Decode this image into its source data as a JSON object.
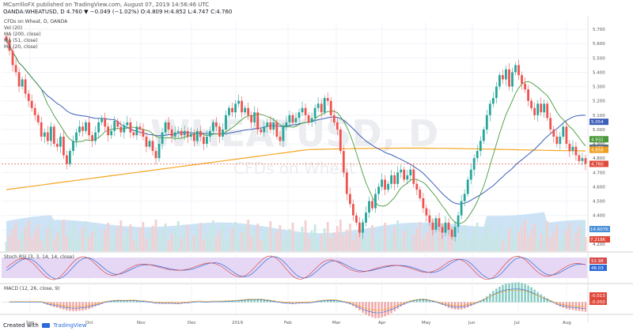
{
  "header": {
    "published_line": "MCarrilloFX published on TradingView.com, August 07, 2019 14:56:46 UTC",
    "symbol_line": "OANDA:WHEATUSD, D  4.760  ▼ −0.049 (−1.02%)  O:4.809  H:4.852  L:4.747  C:4.760"
  },
  "legend": {
    "title": "CFDs on Wheat, D, OANDA",
    "items": [
      "Vol (20)",
      "MA (200, close)",
      "MA (51, close)",
      "MA (20, close)"
    ]
  },
  "watermark": {
    "symbol": "WHEATUSD, D",
    "desc": "CFDs on Wheat"
  },
  "price_axis": {
    "ticks": [
      "5.700",
      "5.600",
      "5.500",
      "5.400",
      "5.300",
      "5.200",
      "5.100",
      "5.000",
      "4.900",
      "4.800",
      "4.700",
      "4.600",
      "4.500",
      "4.400",
      "4.300",
      "4.200"
    ]
  },
  "badges": [
    {
      "text": "5.054",
      "color": "#3c5fb8",
      "price": 5.054
    },
    {
      "text": "4.932",
      "color": "#4a9a3a",
      "price": 4.932
    },
    {
      "text": "4.873",
      "color": "#607080",
      "price": 4.873
    },
    {
      "text": "4.858",
      "color": "#f0a020",
      "price": 4.858
    },
    {
      "text": "4.760",
      "color": "#e04a3a",
      "price": 4.76
    }
  ],
  "volume_badges": [
    {
      "text": "14.607K",
      "color": "#4a90d8"
    },
    {
      "text": "7.218K",
      "color": "#e04a3a"
    }
  ],
  "stoch": {
    "label": "Stoch RSI (3, 3, 14, 14, close)",
    "k_badge": "52.98",
    "d_badge": "48.03",
    "k_color": "#d84a4a",
    "d_color": "#2a6ad8"
  },
  "macd": {
    "label": "MACD (12, 26, close, 9)",
    "hist_badge": "-0.013",
    "signal_badge": "-0.050"
  },
  "x_axis": {
    "labels": [
      "Sep",
      "Oct",
      "Nov",
      "Dec",
      "2019",
      "Feb",
      "Mar",
      "Apr",
      "May",
      "Jun",
      "Jul",
      "Aug"
    ]
  },
  "footer": {
    "created_with": "Created with",
    "brand": "TradingView"
  },
  "colors": {
    "up": "#26a69a",
    "down": "#ef5350",
    "ma200": "#f5a623",
    "ma51": "#3c5fb8",
    "ma20": "#4a9a3a",
    "stoch_band": "#e6d8f5"
  },
  "chart_data": {
    "type": "candlestick",
    "symbol": "OANDA:WHEATUSD",
    "interval": "D",
    "ylim": [
      4.15,
      5.75
    ],
    "close_series": [
      5.62,
      5.55,
      5.45,
      5.4,
      5.3,
      5.35,
      5.25,
      5.2,
      5.15,
      5.1,
      5.05,
      4.95,
      4.98,
      4.92,
      5.02,
      4.9,
      4.88,
      4.95,
      4.82,
      4.76,
      4.85,
      4.92,
      4.98,
      5.02,
      4.99,
      5.05,
      4.96,
      4.92,
      4.98,
      5.05,
      5.08,
      5.02,
      4.96,
      4.99,
      5.06,
      5.02,
      4.98,
      5.03,
      5.05,
      4.98,
      4.96,
      5.02,
      5.0,
      4.95,
      4.88,
      4.92,
      4.85,
      4.8,
      4.9,
      4.98,
      5.05,
      5.0,
      4.95,
      4.98,
      4.99,
      4.96,
      4.99,
      4.95,
      4.97,
      4.92,
      4.99,
      4.95,
      4.9,
      4.95,
      4.99,
      5.05,
      5.02,
      4.95,
      5.0,
      5.1,
      5.15,
      5.12,
      5.18,
      5.2,
      5.12,
      5.15,
      5.1,
      5.05,
      5.12,
      5.0,
      4.98,
      5.02,
      5.05,
      5.0,
      5.05,
      4.95,
      4.92,
      5.02,
      5.05,
      5.1,
      5.05,
      5.08,
      5.12,
      5.15,
      5.1,
      5.05,
      5.08,
      5.15,
      5.18,
      5.12,
      5.22,
      5.2,
      5.1,
      5.05,
      5.0,
      4.85,
      4.7,
      4.55,
      4.48,
      4.4,
      4.35,
      4.28,
      4.35,
      4.42,
      4.5,
      4.45,
      4.55,
      4.6,
      4.65,
      4.58,
      4.62,
      4.68,
      4.62,
      4.7,
      4.72,
      4.65,
      4.68,
      4.72,
      4.62,
      4.58,
      4.52,
      4.45,
      4.4,
      4.35,
      4.3,
      4.38,
      4.32,
      4.28,
      4.35,
      4.3,
      4.25,
      4.32,
      4.4,
      4.5,
      4.55,
      4.65,
      4.72,
      4.8,
      4.85,
      4.92,
      5.0,
      5.1,
      5.18,
      5.22,
      5.3,
      5.38,
      5.35,
      5.42,
      5.3,
      5.4,
      5.45,
      5.38,
      5.32,
      5.28,
      5.2,
      5.15,
      5.1,
      5.18,
      5.12,
      5.18,
      5.08,
      5.0,
      4.95,
      4.9,
      4.95,
      5.02,
      4.9,
      4.85,
      4.88,
      4.82,
      4.78,
      4.8,
      4.76
    ]
  }
}
